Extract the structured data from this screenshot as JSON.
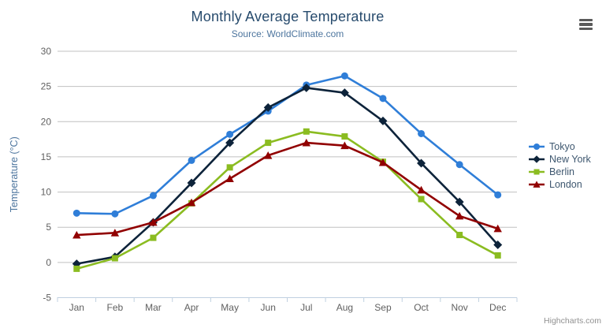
{
  "chart_data": {
    "type": "line",
    "title": "Monthly Average Temperature",
    "subtitle": "Source: WorldClimate.com",
    "categories": [
      "Jan",
      "Feb",
      "Mar",
      "Apr",
      "May",
      "Jun",
      "Jul",
      "Aug",
      "Sep",
      "Oct",
      "Nov",
      "Dec"
    ],
    "xlabel": "",
    "ylabel": "Temperature (°C)",
    "ylim": [
      -5,
      30
    ],
    "yticks": [
      30,
      25,
      20,
      15,
      10,
      5,
      0,
      -5
    ],
    "grid": true,
    "legend_position": "right",
    "series": [
      {
        "name": "Tokyo",
        "color": "#2f7ed8",
        "marker": "circle",
        "values": [
          7.0,
          6.9,
          9.5,
          14.5,
          18.2,
          21.5,
          25.2,
          26.5,
          23.3,
          18.3,
          13.9,
          9.6
        ]
      },
      {
        "name": "New York",
        "color": "#0d233a",
        "marker": "diamond",
        "values": [
          -0.2,
          0.8,
          5.7,
          11.3,
          17.0,
          22.0,
          24.8,
          24.1,
          20.1,
          14.1,
          8.6,
          2.5
        ]
      },
      {
        "name": "Berlin",
        "color": "#8bbc21",
        "marker": "square",
        "values": [
          -0.9,
          0.6,
          3.5,
          8.4,
          13.5,
          17.0,
          18.6,
          17.9,
          14.3,
          9.0,
          3.9,
          1.0
        ]
      },
      {
        "name": "London",
        "color": "#910000",
        "marker": "triangle",
        "values": [
          3.9,
          4.2,
          5.7,
          8.5,
          11.9,
          15.2,
          17.0,
          16.6,
          14.2,
          10.3,
          6.6,
          4.8
        ]
      }
    ]
  },
  "credits": "Highcharts.com",
  "icons": {
    "export_menu": "hamburger-icon"
  },
  "style_colors": {
    "title": "#274b6d",
    "subtitle": "#4d759e",
    "axis_title": "#4d759e",
    "axis_labels": "#606060",
    "grid_line": "#c0c0c0",
    "axis_line": "#c0d0e0",
    "legend_text": "#3e576f",
    "credits_text": "#909090"
  }
}
